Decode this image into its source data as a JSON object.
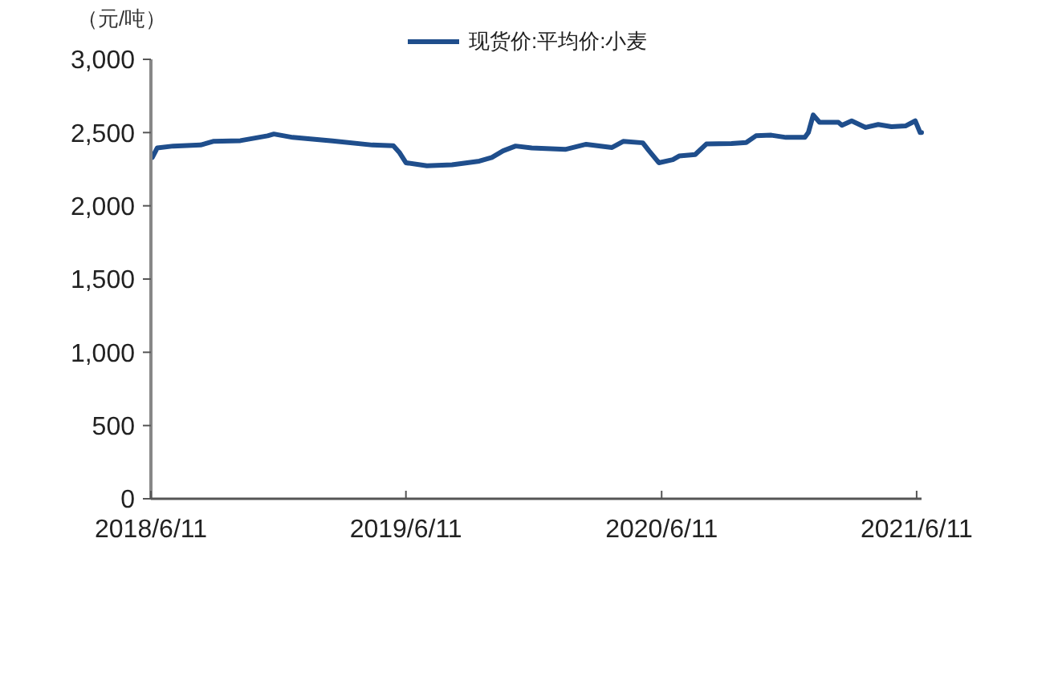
{
  "chart_data": {
    "type": "line",
    "ylabel": "（元/吨）",
    "legend": "top",
    "x": [
      "2018-06-13",
      "2018-06-20",
      "2018-07-13",
      "2018-08-21",
      "2018-09-08",
      "2018-10-17",
      "2018-11-25",
      "2018-12-04",
      "2018-12-31",
      "2019-02-26",
      "2019-04-24",
      "2019-05-24",
      "2019-06-02",
      "2019-06-11",
      "2019-07-11",
      "2019-08-16",
      "2019-09-24",
      "2019-10-12",
      "2019-10-28",
      "2019-11-15",
      "2019-12-08",
      "2020-01-25",
      "2020-02-24",
      "2020-04-01",
      "2020-04-17",
      "2020-05-15",
      "2020-05-24",
      "2020-06-07",
      "2020-06-27",
      "2020-07-06",
      "2020-07-29",
      "2020-08-14",
      "2020-09-19",
      "2020-10-10",
      "2020-10-24",
      "2020-11-15",
      "2020-12-06",
      "2021-01-02",
      "2021-01-07",
      "2021-01-14",
      "2021-01-23",
      "2021-02-19",
      "2021-02-24",
      "2021-03-10",
      "2021-03-30",
      "2021-04-17",
      "2021-05-06",
      "2021-05-26",
      "2021-06-09",
      "2021-06-16",
      "2021-06-18"
    ],
    "series": [
      {
        "name": "现货价:平均价:小麦",
        "color": "#1f4e8c",
        "values": [
          2330,
          2395,
          2408,
          2415,
          2440,
          2445,
          2478,
          2490,
          2467,
          2443,
          2415,
          2410,
          2362,
          2294,
          2273,
          2280,
          2305,
          2330,
          2375,
          2408,
          2395,
          2385,
          2420,
          2398,
          2440,
          2430,
          2375,
          2294,
          2315,
          2340,
          2350,
          2422,
          2425,
          2432,
          2478,
          2482,
          2467,
          2467,
          2500,
          2620,
          2570,
          2570,
          2550,
          2580,
          2535,
          2555,
          2540,
          2545,
          2580,
          2500,
          2500
        ]
      }
    ],
    "xlim": [
      "2018-06-11",
      "2021-06-18"
    ],
    "xticks": [
      {
        "value": "2018-06-11",
        "label": "2018/6/11"
      },
      {
        "value": "2019-06-11",
        "label": "2019/6/11"
      },
      {
        "value": "2020-06-11",
        "label": "2020/6/11"
      },
      {
        "value": "2021-06-11",
        "label": "2021/6/11"
      }
    ],
    "ylim": [
      0,
      3000
    ],
    "yticks": [
      {
        "value": 0,
        "label": "0"
      },
      {
        "value": 500,
        "label": "500"
      },
      {
        "value": 1000,
        "label": "1,000"
      },
      {
        "value": 1500,
        "label": "1,500"
      },
      {
        "value": 2000,
        "label": "2,000"
      },
      {
        "value": 2500,
        "label": "2,500"
      },
      {
        "value": 3000,
        "label": "3,000"
      }
    ],
    "grid": false,
    "line_style": "solid",
    "marker": "none"
  }
}
